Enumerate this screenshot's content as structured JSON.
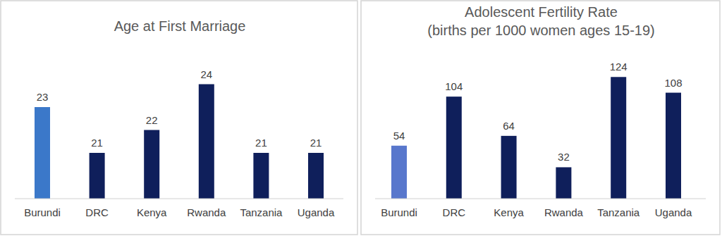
{
  "chart_data": [
    {
      "type": "bar",
      "title": "Age at First Marriage",
      "categories": [
        "Burundi",
        "DRC",
        "Kenya",
        "Rwanda",
        "Tanzania",
        "Uganda"
      ],
      "values": [
        23,
        21,
        22,
        24,
        21,
        21
      ],
      "colors": [
        "#3b78c9",
        "#0f1f5b",
        "#0f1f5b",
        "#0f1f5b",
        "#0f1f5b",
        "#0f1f5b"
      ],
      "ylim": [
        19,
        25
      ],
      "tick_labels": "x",
      "data_labels": true,
      "grid": false
    },
    {
      "type": "bar",
      "title": "Adolescent Fertility Rate",
      "subtitle": "(births per 1000 women ages 15-19)",
      "categories": [
        "Burundi",
        "DRC",
        "Kenya",
        "Rwanda",
        "Tanzania",
        "Uganda"
      ],
      "values": [
        54,
        104,
        64,
        32,
        124,
        108
      ],
      "colors": [
        "#5877cc",
        "#0f1f5b",
        "#0f1f5b",
        "#0f1f5b",
        "#0f1f5b",
        "#0f1f5b"
      ],
      "ylim": [
        0,
        140
      ],
      "tick_labels": "x",
      "data_labels": true,
      "grid": false
    }
  ]
}
